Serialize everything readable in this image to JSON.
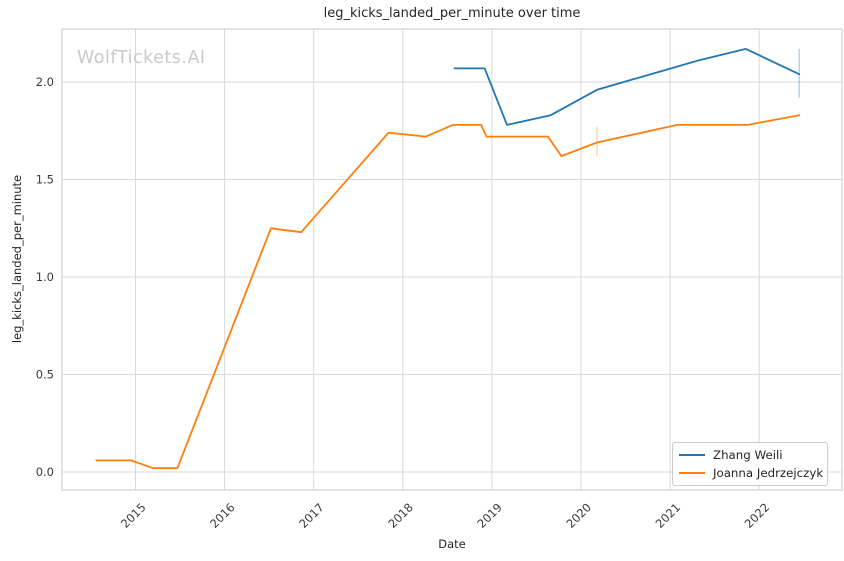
{
  "watermark": "WolfTickets.AI",
  "colors": {
    "background": "#ffffff",
    "grid": "#d9d9d9",
    "spine": "#d3d3d3",
    "text": "#262626",
    "tick_text": "#3a3a3a",
    "watermark": "#c9c9c9",
    "series_blue": "#1f77b4",
    "series_orange": "#ff7f0e"
  },
  "chart_data": {
    "type": "line",
    "title": "leg_kicks_landed_per_minute over time",
    "xlabel": "Date",
    "ylabel": "leg_kicks_landed_per_minute",
    "x_unit": "decimal_year",
    "grid": true,
    "legend_position": "lower right",
    "xlim": [
      2014.175,
      2022.93
    ],
    "ylim": [
      -0.092,
      2.272
    ],
    "xticks": [
      2015,
      2016,
      2017,
      2018,
      2019,
      2020,
      2021,
      2022
    ],
    "yticks": [
      {
        "v": 0.0,
        "label": "0.0"
      },
      {
        "v": 0.5,
        "label": "0.5"
      },
      {
        "v": 1.0,
        "label": "1.0"
      },
      {
        "v": 1.5,
        "label": "1.5"
      },
      {
        "v": 2.0,
        "label": "2.0"
      }
    ],
    "series": [
      {
        "name": "Zhang Weili",
        "color": "#1f77b4",
        "points": [
          [
            2018.58,
            2.07
          ],
          [
            2018.92,
            2.07
          ],
          [
            2019.17,
            1.78
          ],
          [
            2019.66,
            1.83
          ],
          [
            2020.18,
            1.96
          ],
          [
            2021.31,
            2.11
          ],
          [
            2021.85,
            2.17
          ],
          [
            2022.45,
            2.04
          ]
        ],
        "error_bar": {
          "x": 2022.45,
          "y_low": 1.92,
          "y_high": 2.17
        }
      },
      {
        "name": "Joanna Jedrzejczyk",
        "color": "#ff7f0e",
        "points": [
          [
            2014.56,
            0.06
          ],
          [
            2014.95,
            0.06
          ],
          [
            2015.2,
            0.02
          ],
          [
            2015.47,
            0.02
          ],
          [
            2016.52,
            1.25
          ],
          [
            2016.86,
            1.23
          ],
          [
            2017.84,
            1.74
          ],
          [
            2018.26,
            1.72
          ],
          [
            2018.56,
            1.78
          ],
          [
            2018.88,
            1.78
          ],
          [
            2018.94,
            1.72
          ],
          [
            2019.63,
            1.72
          ],
          [
            2019.78,
            1.62
          ],
          [
            2020.18,
            1.69
          ],
          [
            2021.08,
            1.78
          ],
          [
            2021.87,
            1.78
          ],
          [
            2022.45,
            1.83
          ]
        ],
        "error_bar": {
          "x": 2020.18,
          "y_low": 1.62,
          "y_high": 1.77
        }
      }
    ]
  }
}
